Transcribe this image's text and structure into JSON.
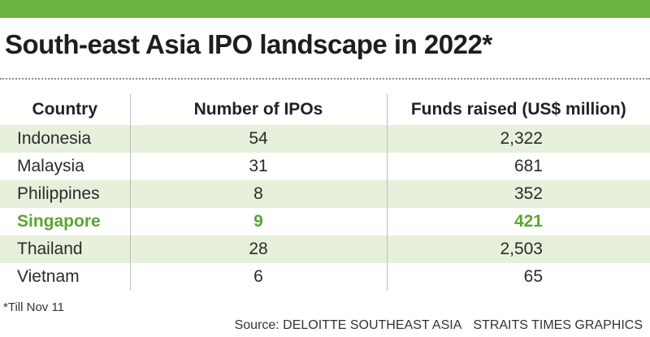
{
  "title": "South-east Asia IPO landscape in 2022*",
  "colors": {
    "accent": "#6db33f",
    "highlight_text": "#5aa531",
    "row_tint": "#e6f0db"
  },
  "chart_data": {
    "type": "table",
    "title": "South-east Asia IPO landscape in 2022*",
    "columns": [
      "Country",
      "Number of IPOs",
      "Funds raised (US$ million)"
    ],
    "rows": [
      {
        "country": "Indonesia",
        "ipos": "54",
        "funds": "2,322",
        "highlight": false
      },
      {
        "country": "Malaysia",
        "ipos": "31",
        "funds": "681",
        "highlight": false
      },
      {
        "country": "Philippines",
        "ipos": "8",
        "funds": "352",
        "highlight": false
      },
      {
        "country": "Singapore",
        "ipos": "9",
        "funds": "421",
        "highlight": true
      },
      {
        "country": "Thailand",
        "ipos": "28",
        "funds": "2,503",
        "highlight": false
      },
      {
        "country": "Vietnam",
        "ipos": "6",
        "funds": "65",
        "highlight": false
      }
    ]
  },
  "footnote": "*Till Nov 11",
  "source": {
    "label": "Source: DELOITTE SOUTHEAST ASIA",
    "credit": "STRAITS TIMES GRAPHICS"
  }
}
